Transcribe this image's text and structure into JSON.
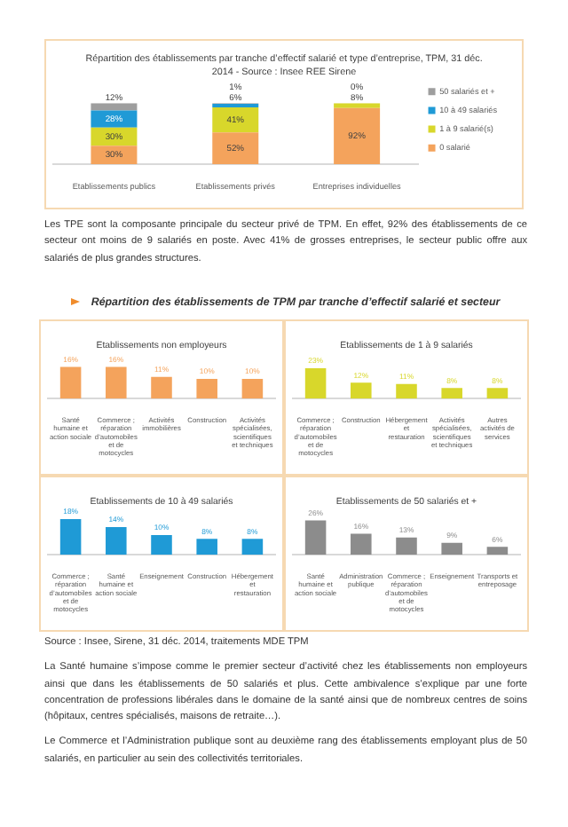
{
  "chart_data": [
    {
      "type": "bar",
      "title": "Répartition des établissements par tranche d’effectif salarié et type d’entreprise, TPM, 31 déc. 2014 - Source : Insee REE Sirene",
      "categories": [
        "Etablissements publics",
        "Etablissements privés",
        "Entreprises individuelles"
      ],
      "stacked": true,
      "legend": "right",
      "tick_labels": "x",
      "ylim": [
        0,
        100
      ],
      "series": [
        {
          "name": "0 salarié",
          "color": "#f4a35c",
          "values": [
            30,
            52,
            92
          ],
          "value_labels": [
            "30%",
            "52%",
            "92%"
          ]
        },
        {
          "name": "1 à 9 salarié(s)",
          "color": "#d8d72b",
          "values": [
            30,
            41,
            8
          ],
          "value_labels": [
            "30%",
            "41%",
            "8%"
          ]
        },
        {
          "name": "10 à 49 salariés",
          "color": "#1f9ad6",
          "values": [
            28,
            6,
            0
          ],
          "value_labels": [
            "28%",
            "6%",
            null
          ]
        },
        {
          "name": "50 salariés et +",
          "color": "#9e9e9e",
          "values": [
            12,
            1,
            0
          ],
          "value_labels": [
            "12%",
            "1%",
            "0%"
          ]
        }
      ]
    },
    {
      "type": "other",
      "annotations": [
        "Les TPE sont la composante principale du secteur privé de TPM. En effet, 92% des établissements de ce secteur ont moins de 9 salariés en poste. Avec 41% de grosses entreprises, le secteur public offre aux salariés de plus grandes structures."
      ]
    },
    {
      "type": "other",
      "title": "Répartition des établissements de TPM par tranche d’effectif salarié et secteur"
    },
    {
      "type": "bar",
      "title": "Etablissements non employeurs",
      "categories": [
        "Santé humaine et action sociale",
        "Commerce ; réparation d’automobiles et de motocycles",
        "Activités immobilières",
        "Construction",
        "Activités spécialisées, scientifiques et techniques"
      ],
      "tick_labels": "x",
      "color": "#f4a35c",
      "values": [
        16,
        16,
        11,
        10,
        10
      ],
      "value_labels": [
        "16%",
        "16%",
        "11%",
        "10%",
        "10%"
      ]
    },
    {
      "type": "bar",
      "title": "Etablissements de 1 à 9 salariés",
      "categories": [
        "Commerce ; réparation d’automobiles et de motocycles",
        "Construction",
        "Hébergement et restauration",
        "Activités spécialisées, scientifiques et techniques",
        "Autres activités de services"
      ],
      "tick_labels": "x",
      "color": "#d8d72b",
      "values": [
        23,
        12,
        11,
        8,
        8
      ],
      "value_labels": [
        "23%",
        "12%",
        "11%",
        "8%",
        "8%"
      ]
    },
    {
      "type": "bar",
      "title": "Etablissements de 10 à 49 salariés",
      "categories": [
        "Commerce ; réparation d’automobiles et de motocycles",
        "Santé humaine et action sociale",
        "Enseignement",
        "Construction",
        "Hébergement et restauration"
      ],
      "tick_labels": "x",
      "color": "#1f9ad6",
      "values": [
        18,
        14,
        10,
        8,
        8
      ],
      "value_labels": [
        "18%",
        "14%",
        "10%",
        "8%",
        "8%"
      ]
    },
    {
      "type": "bar",
      "title": "Etablissements de 50 salariés et +",
      "categories": [
        "Santé humaine et action sociale",
        "Administration publique",
        "Commerce ; réparation d’automobiles et de motocycles",
        "Enseignement",
        "Transports et entreposage"
      ],
      "tick_labels": "x",
      "color": "#8c8c8c",
      "values": [
        26,
        16,
        13,
        9,
        6
      ],
      "value_labels": [
        "26%",
        "16%",
        "13%",
        "9%",
        "6%"
      ]
    },
    {
      "type": "other",
      "annotations": [
        "Source : Insee, Sirene, 31 déc. 2014, traitements MDE TPM",
        "La Santé humaine s’impose comme le premier secteur d’activité chez les établissements non employeurs ainsi que dans les établissements de 50 salariés et plus. Cette ambivalence s’explique par une forte concentration de professions libérales dans le domaine de la santé ainsi que de nombreux centres de soins (hôpitaux, centres spécialisés, maisons de retraite…).",
        "Le Commerce et l’Administration publique sont au deuxième rang des établissements employant plus de 50 salariés, en particulier au sein des collectivités territoriales."
      ]
    }
  ]
}
